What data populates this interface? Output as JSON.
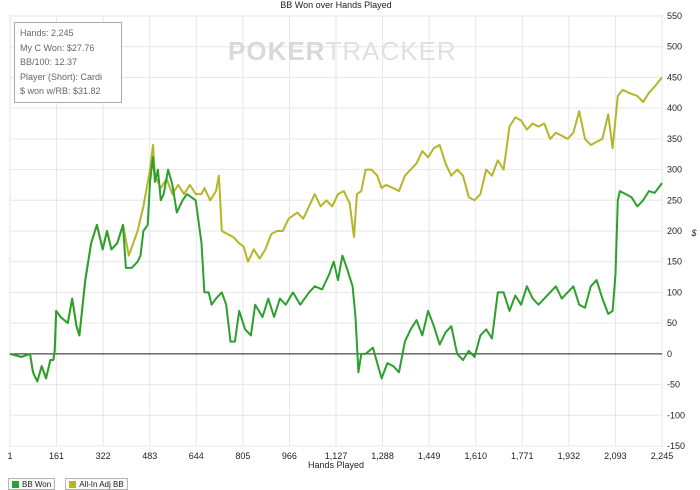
{
  "stats": {
    "hands": "Hands: 2,245",
    "my_c_won": "My C Won: $27.76",
    "bb_100": "BB/100: 12.37",
    "player": "Player (Short): Cardi",
    "won_wrb": "$ won w/RB: $31.82"
  },
  "watermark": {
    "part1": "POKER",
    "part2": "TRACKER"
  },
  "chart_data": {
    "type": "line",
    "title": "BB Won over Hands Played",
    "xlabel": "Hands Played",
    "ylabel": "$",
    "xlim": [
      1,
      2245
    ],
    "ylim": [
      -150,
      550
    ],
    "x_ticks": [
      "1",
      "161",
      "322",
      "483",
      "644",
      "805",
      "966",
      "1,127",
      "1,288",
      "1,449",
      "1,610",
      "1,771",
      "1,932",
      "2,093",
      "2,245"
    ],
    "y_ticks": [
      -150,
      -100,
      -50,
      0,
      50,
      100,
      150,
      200,
      250,
      300,
      350,
      400,
      450,
      500,
      550
    ],
    "grid": true,
    "legend_position": "bottom-left",
    "series": [
      {
        "name": "BB Won",
        "color": "#2ca02c",
        "points": [
          [
            1,
            0
          ],
          [
            40,
            -5
          ],
          [
            70,
            0
          ],
          [
            80,
            -30
          ],
          [
            95,
            -45
          ],
          [
            110,
            -20
          ],
          [
            125,
            -40
          ],
          [
            140,
            -10
          ],
          [
            150,
            -10
          ],
          [
            155,
            5
          ],
          [
            160,
            70
          ],
          [
            175,
            60
          ],
          [
            200,
            50
          ],
          [
            215,
            90
          ],
          [
            230,
            45
          ],
          [
            240,
            30
          ],
          [
            260,
            120
          ],
          [
            280,
            180
          ],
          [
            300,
            210
          ],
          [
            320,
            170
          ],
          [
            335,
            200
          ],
          [
            350,
            170
          ],
          [
            370,
            180
          ],
          [
            390,
            210
          ],
          [
            400,
            140
          ],
          [
            420,
            140
          ],
          [
            440,
            150
          ],
          [
            450,
            160
          ],
          [
            460,
            200
          ],
          [
            475,
            210
          ],
          [
            483,
            280
          ],
          [
            493,
            320
          ],
          [
            500,
            280
          ],
          [
            510,
            300
          ],
          [
            520,
            250
          ],
          [
            530,
            260
          ],
          [
            545,
            300
          ],
          [
            560,
            275
          ],
          [
            575,
            230
          ],
          [
            595,
            250
          ],
          [
            610,
            260
          ],
          [
            640,
            250
          ],
          [
            660,
            180
          ],
          [
            670,
            100
          ],
          [
            685,
            100
          ],
          [
            695,
            80
          ],
          [
            710,
            90
          ],
          [
            730,
            100
          ],
          [
            745,
            80
          ],
          [
            760,
            20
          ],
          [
            775,
            20
          ],
          [
            790,
            70
          ],
          [
            810,
            40
          ],
          [
            830,
            30
          ],
          [
            845,
            80
          ],
          [
            870,
            60
          ],
          [
            890,
            90
          ],
          [
            910,
            60
          ],
          [
            930,
            90
          ],
          [
            950,
            80
          ],
          [
            975,
            100
          ],
          [
            1000,
            80
          ],
          [
            1030,
            100
          ],
          [
            1050,
            110
          ],
          [
            1075,
            105
          ],
          [
            1100,
            130
          ],
          [
            1115,
            150
          ],
          [
            1130,
            120
          ],
          [
            1145,
            160
          ],
          [
            1160,
            140
          ],
          [
            1180,
            110
          ],
          [
            1190,
            60
          ],
          [
            1200,
            -30
          ],
          [
            1210,
            0
          ],
          [
            1225,
            0
          ],
          [
            1250,
            10
          ],
          [
            1280,
            -40
          ],
          [
            1300,
            -15
          ],
          [
            1320,
            -20
          ],
          [
            1340,
            -30
          ],
          [
            1360,
            20
          ],
          [
            1380,
            40
          ],
          [
            1400,
            55
          ],
          [
            1420,
            30
          ],
          [
            1440,
            70
          ],
          [
            1460,
            45
          ],
          [
            1480,
            15
          ],
          [
            1500,
            35
          ],
          [
            1520,
            45
          ],
          [
            1540,
            0
          ],
          [
            1560,
            -10
          ],
          [
            1580,
            5
          ],
          [
            1600,
            -5
          ],
          [
            1620,
            30
          ],
          [
            1640,
            40
          ],
          [
            1660,
            25
          ],
          [
            1680,
            100
          ],
          [
            1700,
            100
          ],
          [
            1720,
            70
          ],
          [
            1740,
            95
          ],
          [
            1760,
            80
          ],
          [
            1780,
            110
          ],
          [
            1800,
            90
          ],
          [
            1820,
            80
          ],
          [
            1840,
            90
          ],
          [
            1860,
            100
          ],
          [
            1880,
            110
          ],
          [
            1900,
            90
          ],
          [
            1920,
            100
          ],
          [
            1940,
            110
          ],
          [
            1960,
            80
          ],
          [
            1980,
            75
          ],
          [
            2000,
            110
          ],
          [
            2020,
            120
          ],
          [
            2040,
            90
          ],
          [
            2060,
            65
          ],
          [
            2075,
            70
          ],
          [
            2085,
            130
          ],
          [
            2093,
            250
          ],
          [
            2100,
            265
          ],
          [
            2120,
            260
          ],
          [
            2140,
            255
          ],
          [
            2160,
            240
          ],
          [
            2180,
            250
          ],
          [
            2200,
            265
          ],
          [
            2220,
            262
          ],
          [
            2245,
            278
          ]
        ]
      },
      {
        "name": "All-In Adj BB",
        "color": "#b5b52a",
        "points": [
          [
            1,
            0
          ],
          [
            40,
            -5
          ],
          [
            70,
            0
          ],
          [
            80,
            -30
          ],
          [
            95,
            -45
          ],
          [
            110,
            -20
          ],
          [
            125,
            -40
          ],
          [
            140,
            -10
          ],
          [
            150,
            -10
          ],
          [
            155,
            5
          ],
          [
            160,
            70
          ],
          [
            175,
            60
          ],
          [
            200,
            50
          ],
          [
            215,
            90
          ],
          [
            230,
            45
          ],
          [
            240,
            30
          ],
          [
            260,
            120
          ],
          [
            280,
            180
          ],
          [
            300,
            210
          ],
          [
            320,
            170
          ],
          [
            335,
            200
          ],
          [
            350,
            170
          ],
          [
            370,
            180
          ],
          [
            390,
            210
          ],
          [
            410,
            160
          ],
          [
            440,
            200
          ],
          [
            460,
            240
          ],
          [
            483,
            300
          ],
          [
            493,
            340
          ],
          [
            500,
            290
          ],
          [
            520,
            270
          ],
          [
            540,
            285
          ],
          [
            560,
            260
          ],
          [
            580,
            275
          ],
          [
            600,
            260
          ],
          [
            620,
            275
          ],
          [
            640,
            260
          ],
          [
            660,
            260
          ],
          [
            670,
            270
          ],
          [
            690,
            250
          ],
          [
            710,
            265
          ],
          [
            720,
            290
          ],
          [
            730,
            200
          ],
          [
            750,
            195
          ],
          [
            770,
            190
          ],
          [
            790,
            180
          ],
          [
            805,
            175
          ],
          [
            820,
            150
          ],
          [
            840,
            170
          ],
          [
            860,
            155
          ],
          [
            880,
            170
          ],
          [
            900,
            195
          ],
          [
            920,
            200
          ],
          [
            940,
            200
          ],
          [
            960,
            220
          ],
          [
            990,
            230
          ],
          [
            1010,
            220
          ],
          [
            1030,
            240
          ],
          [
            1050,
            260
          ],
          [
            1070,
            240
          ],
          [
            1090,
            250
          ],
          [
            1110,
            240
          ],
          [
            1130,
            260
          ],
          [
            1150,
            265
          ],
          [
            1170,
            245
          ],
          [
            1185,
            190
          ],
          [
            1195,
            260
          ],
          [
            1210,
            265
          ],
          [
            1225,
            300
          ],
          [
            1245,
            300
          ],
          [
            1265,
            290
          ],
          [
            1280,
            270
          ],
          [
            1295,
            275
          ],
          [
            1320,
            270
          ],
          [
            1340,
            265
          ],
          [
            1360,
            290
          ],
          [
            1380,
            300
          ],
          [
            1400,
            310
          ],
          [
            1420,
            330
          ],
          [
            1440,
            320
          ],
          [
            1460,
            335
          ],
          [
            1480,
            340
          ],
          [
            1500,
            310
          ],
          [
            1520,
            290
          ],
          [
            1540,
            300
          ],
          [
            1560,
            290
          ],
          [
            1580,
            255
          ],
          [
            1600,
            250
          ],
          [
            1620,
            260
          ],
          [
            1640,
            300
          ],
          [
            1660,
            290
          ],
          [
            1680,
            315
          ],
          [
            1700,
            300
          ],
          [
            1720,
            370
          ],
          [
            1740,
            385
          ],
          [
            1760,
            380
          ],
          [
            1780,
            365
          ],
          [
            1800,
            375
          ],
          [
            1820,
            370
          ],
          [
            1840,
            375
          ],
          [
            1860,
            350
          ],
          [
            1880,
            360
          ],
          [
            1900,
            355
          ],
          [
            1920,
            350
          ],
          [
            1940,
            360
          ],
          [
            1960,
            395
          ],
          [
            1980,
            350
          ],
          [
            2000,
            340
          ],
          [
            2020,
            345
          ],
          [
            2040,
            350
          ],
          [
            2060,
            390
          ],
          [
            2075,
            335
          ],
          [
            2093,
            420
          ],
          [
            2110,
            430
          ],
          [
            2130,
            425
          ],
          [
            2160,
            420
          ],
          [
            2180,
            410
          ],
          [
            2200,
            425
          ],
          [
            2220,
            435
          ],
          [
            2245,
            450
          ]
        ]
      }
    ]
  }
}
